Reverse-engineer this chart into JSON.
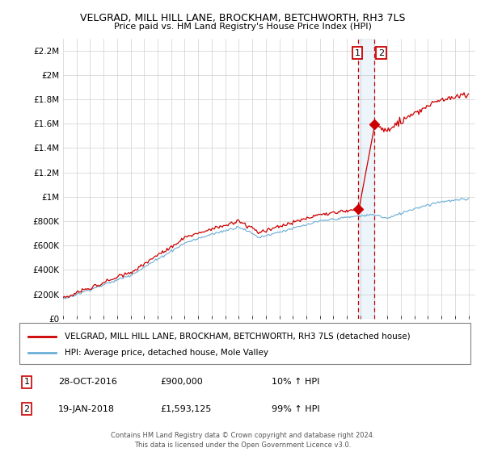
{
  "title": "VELGRAD, MILL HILL LANE, BROCKHAM, BETCHWORTH, RH3 7LS",
  "subtitle": "Price paid vs. HM Land Registry's House Price Index (HPI)",
  "legend_line1": "VELGRAD, MILL HILL LANE, BROCKHAM, BETCHWORTH, RH3 7LS (detached house)",
  "legend_line2": "HPI: Average price, detached house, Mole Valley",
  "annotation1_label": "1",
  "annotation1_date": "28-OCT-2016",
  "annotation1_price": "£900,000",
  "annotation1_hpi": "10% ↑ HPI",
  "annotation1_year": 2016.83,
  "annotation1_value": 900000,
  "annotation2_label": "2",
  "annotation2_date": "19-JAN-2018",
  "annotation2_price": "£1,593,125",
  "annotation2_hpi": "99% ↑ HPI",
  "annotation2_year": 2018.05,
  "annotation2_value": 1593125,
  "footer": "Contains HM Land Registry data © Crown copyright and database right 2024.\nThis data is licensed under the Open Government Licence v3.0.",
  "hpi_color": "#6baed6",
  "price_color": "#cc0000",
  "ylim": [
    0,
    2300000
  ],
  "xlim_start": 1995.0,
  "xlim_end": 2025.5,
  "yticks": [
    0,
    200000,
    400000,
    600000,
    800000,
    1000000,
    1200000,
    1400000,
    1600000,
    1800000,
    2000000,
    2200000
  ],
  "ytick_labels": [
    "£0",
    "£200K",
    "£400K",
    "£600K",
    "£800K",
    "£1M",
    "£1.2M",
    "£1.4M",
    "£1.6M",
    "£1.8M",
    "£2M",
    "£2.2M"
  ],
  "xticks": [
    1995,
    1996,
    1997,
    1998,
    1999,
    2000,
    2001,
    2002,
    2003,
    2004,
    2005,
    2006,
    2007,
    2008,
    2009,
    2010,
    2011,
    2012,
    2013,
    2014,
    2015,
    2016,
    2017,
    2018,
    2019,
    2020,
    2021,
    2022,
    2023,
    2024,
    2025
  ]
}
